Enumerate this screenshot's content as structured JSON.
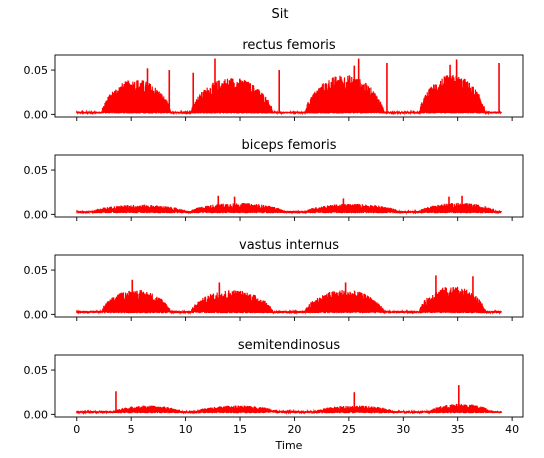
{
  "chart_data": {
    "type": "line",
    "suptitle": "Sit",
    "xlabel": "Time",
    "xlim": [
      -2,
      41
    ],
    "ylim": [
      -0.003,
      0.067
    ],
    "xticks": [
      0,
      5,
      10,
      15,
      20,
      25,
      30,
      35,
      40
    ],
    "yticks": [
      0.0,
      0.05
    ],
    "ytick_labels": [
      "0.00",
      "0.05"
    ],
    "line_color": "#ff0000",
    "x_range": [
      0,
      39
    ],
    "panels": [
      {
        "title": "rectus femoris",
        "baseline": 0.003,
        "bursts": [
          {
            "start": 2.3,
            "end": 8.6,
            "peak": 0.04
          },
          {
            "start": 10.5,
            "end": 18.0,
            "peak": 0.042
          },
          {
            "start": 21.0,
            "end": 28.2,
            "peak": 0.045
          },
          {
            "start": 31.5,
            "end": 37.5,
            "peak": 0.045
          }
        ],
        "spikes": [
          {
            "x": 6.5,
            "y": 0.052
          },
          {
            "x": 8.5,
            "y": 0.05
          },
          {
            "x": 10.7,
            "y": 0.047
          },
          {
            "x": 12.7,
            "y": 0.063
          },
          {
            "x": 18.6,
            "y": 0.05
          },
          {
            "x": 25.5,
            "y": 0.055
          },
          {
            "x": 25.9,
            "y": 0.063
          },
          {
            "x": 28.5,
            "y": 0.058
          },
          {
            "x": 34.3,
            "y": 0.056
          },
          {
            "x": 34.9,
            "y": 0.062
          },
          {
            "x": 38.8,
            "y": 0.058
          }
        ]
      },
      {
        "title": "biceps femoris",
        "baseline": 0.004,
        "bursts": [
          {
            "start": 1.5,
            "end": 10.0,
            "peak": 0.011
          },
          {
            "start": 10.5,
            "end": 19.0,
            "peak": 0.013
          },
          {
            "start": 21.0,
            "end": 29.5,
            "peak": 0.012
          },
          {
            "start": 31.5,
            "end": 38.5,
            "peak": 0.013
          }
        ],
        "spikes": [
          {
            "x": 13.0,
            "y": 0.021
          },
          {
            "x": 14.5,
            "y": 0.02
          },
          {
            "x": 24.5,
            "y": 0.018
          },
          {
            "x": 34.2,
            "y": 0.02
          },
          {
            "x": 35.4,
            "y": 0.021
          }
        ]
      },
      {
        "title": "vastus internus",
        "baseline": 0.004,
        "bursts": [
          {
            "start": 2.3,
            "end": 8.6,
            "peak": 0.028
          },
          {
            "start": 10.5,
            "end": 18.0,
            "peak": 0.028
          },
          {
            "start": 21.0,
            "end": 28.2,
            "peak": 0.028
          },
          {
            "start": 31.5,
            "end": 37.5,
            "peak": 0.032
          }
        ],
        "spikes": [
          {
            "x": 5.1,
            "y": 0.039
          },
          {
            "x": 13.1,
            "y": 0.036
          },
          {
            "x": 24.7,
            "y": 0.036
          },
          {
            "x": 33.0,
            "y": 0.044
          },
          {
            "x": 36.4,
            "y": 0.043
          }
        ]
      },
      {
        "title": "semitendinosus",
        "baseline": 0.004,
        "bursts": [
          {
            "start": 3.5,
            "end": 9.5,
            "peak": 0.01
          },
          {
            "start": 11.0,
            "end": 18.5,
            "peak": 0.01
          },
          {
            "start": 22.0,
            "end": 29.0,
            "peak": 0.01
          },
          {
            "start": 32.5,
            "end": 38.0,
            "peak": 0.012
          }
        ],
        "spikes": [
          {
            "x": 3.6,
            "y": 0.026
          },
          {
            "x": 25.5,
            "y": 0.025
          },
          {
            "x": 35.1,
            "y": 0.033
          }
        ]
      }
    ]
  }
}
